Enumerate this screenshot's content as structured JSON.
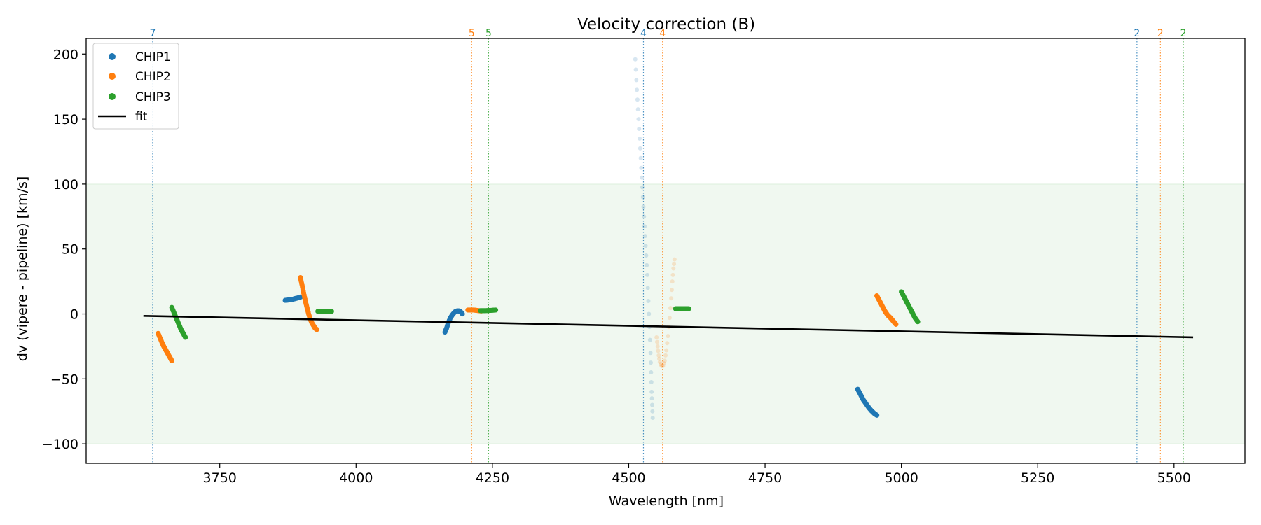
{
  "chart_data": {
    "type": "scatter",
    "title": "Velocity correction (B)",
    "xlabel": "Wavelength [nm]",
    "ylabel": "dv (vipere - pipeline) [km/s]",
    "xlim": [
      3505,
      5630
    ],
    "ylim": [
      -115,
      212
    ],
    "xticks": [
      3750,
      4000,
      4250,
      4500,
      4750,
      5000,
      5250,
      5500
    ],
    "yticks": [
      -100,
      -50,
      0,
      50,
      100,
      150,
      200
    ],
    "tick_labels_x": [
      "3750",
      "4000",
      "4250",
      "4500",
      "4750",
      "5000",
      "5250",
      "5500"
    ],
    "tick_labels_y": [
      "−100",
      "−50",
      "0",
      "50",
      "100",
      "150",
      "200"
    ],
    "band": {
      "ymin": -100,
      "ymax": 100,
      "color": "#2ca02c"
    },
    "zero_line": 0,
    "legend": {
      "placement": "top-left",
      "entries": [
        {
          "label": "CHIP1",
          "color": "#1f77b4",
          "kind": "marker"
        },
        {
          "label": "CHIP2",
          "color": "#ff7f0e",
          "kind": "marker"
        },
        {
          "label": "CHIP3",
          "color": "#2ca02c",
          "kind": "marker"
        },
        {
          "label": "fit",
          "color": "#000000",
          "kind": "line"
        }
      ]
    },
    "series": [
      {
        "name": "CHIP1",
        "color": "#1f77b4",
        "segments": [
          {
            "faded": false,
            "points": [
              [
                3870,
                10.5
              ],
              [
                3875,
                10.7
              ],
              [
                3880,
                11
              ],
              [
                3885,
                11.4
              ],
              [
                3890,
                12
              ],
              [
                3895,
                12.5
              ],
              [
                3898,
                13
              ]
            ]
          },
          {
            "faded": false,
            "points": [
              [
                4163,
                -14
              ],
              [
                4166,
                -11
              ],
              [
                4169,
                -7
              ],
              [
                4173,
                -3
              ],
              [
                4177,
                -0.5
              ],
              [
                4181,
                1.5
              ],
              [
                4185,
                2.3
              ],
              [
                4189,
                2.3
              ],
              [
                4192,
                1.5
              ],
              [
                4195,
                0
              ]
            ]
          },
          {
            "faded": true,
            "points": [
              [
                4512,
                196
              ],
              [
                4514,
                180
              ],
              [
                4516,
                165
              ],
              [
                4518,
                150
              ],
              [
                4520,
                135
              ],
              [
                4522,
                120
              ],
              [
                4524,
                105
              ],
              [
                4526,
                90
              ],
              [
                4528,
                75
              ],
              [
                4530,
                60
              ],
              [
                4532,
                45
              ],
              [
                4534,
                30
              ],
              [
                4536,
                10
              ],
              [
                4538,
                -10
              ],
              [
                4540,
                -30
              ],
              [
                4541,
                -45
              ],
              [
                4542,
                -60
              ],
              [
                4543,
                -70
              ],
              [
                4544,
                -80
              ]
            ]
          },
          {
            "faded": false,
            "points": [
              [
                4920,
                -58
              ],
              [
                4925,
                -62
              ],
              [
                4930,
                -66
              ],
              [
                4935,
                -69
              ],
              [
                4940,
                -72
              ],
              [
                4945,
                -74.5
              ],
              [
                4950,
                -76.5
              ],
              [
                4955,
                -78
              ]
            ]
          }
        ]
      },
      {
        "name": "CHIP2",
        "color": "#ff7f0e",
        "segments": [
          {
            "faded": false,
            "points": [
              [
                3637,
                -15
              ],
              [
                3642,
                -20
              ],
              [
                3646,
                -24
              ],
              [
                3650,
                -27
              ],
              [
                3654,
                -30
              ],
              [
                3658,
                -33
              ],
              [
                3662,
                -36
              ]
            ]
          },
          {
            "faded": false,
            "points": [
              [
                3898,
                28
              ],
              [
                3901,
                22
              ],
              [
                3904,
                16
              ],
              [
                3907,
                10
              ],
              [
                3910,
                5
              ],
              [
                3913,
                0
              ],
              [
                3916,
                -4
              ],
              [
                3919,
                -7
              ],
              [
                3922,
                -9
              ],
              [
                3925,
                -11
              ],
              [
                3928,
                -12
              ]
            ]
          },
          {
            "faded": false,
            "points": [
              [
                4205,
                3
              ],
              [
                4210,
                3
              ],
              [
                4215,
                3
              ],
              [
                4220,
                2.8
              ],
              [
                4225,
                2.5
              ],
              [
                4230,
                2.3
              ]
            ]
          },
          {
            "faded": true,
            "points": [
              [
                4551,
                -18
              ],
              [
                4553,
                -25
              ],
              [
                4555,
                -32
              ],
              [
                4557,
                -37
              ],
              [
                4560,
                -40
              ],
              [
                4563,
                -40
              ],
              [
                4566,
                -36
              ],
              [
                4569,
                -28
              ],
              [
                4572,
                -17
              ],
              [
                4575,
                -3
              ],
              [
                4578,
                12
              ],
              [
                4580,
                25
              ],
              [
                4582,
                35
              ],
              [
                4584,
                42
              ]
            ]
          },
          {
            "faded": false,
            "points": [
              [
                4955,
                14
              ],
              [
                4960,
                10
              ],
              [
                4965,
                6
              ],
              [
                4970,
                2
              ],
              [
                4975,
                -1
              ],
              [
                4980,
                -3
              ],
              [
                4985,
                -5.5
              ],
              [
                4990,
                -8
              ]
            ]
          }
        ]
      },
      {
        "name": "CHIP3",
        "color": "#2ca02c",
        "segments": [
          {
            "faded": false,
            "points": [
              [
                3662,
                5
              ],
              [
                3667,
                0
              ],
              [
                3671,
                -4
              ],
              [
                3675,
                -8
              ],
              [
                3679,
                -12
              ],
              [
                3683,
                -15
              ],
              [
                3687,
                -18
              ]
            ]
          },
          {
            "faded": false,
            "points": [
              [
                3930,
                2
              ],
              [
                3935,
                2
              ],
              [
                3940,
                2
              ],
              [
                3945,
                2
              ],
              [
                3950,
                2
              ],
              [
                3955,
                2
              ]
            ]
          },
          {
            "faded": false,
            "points": [
              [
                4228,
                2.5
              ],
              [
                4235,
                2.5
              ],
              [
                4242,
                2.6
              ],
              [
                4249,
                2.8
              ],
              [
                4256,
                3
              ]
            ]
          },
          {
            "faded": false,
            "points": [
              [
                4586,
                4
              ],
              [
                4592,
                4
              ],
              [
                4598,
                4
              ],
              [
                4604,
                4
              ],
              [
                4610,
                4
              ]
            ]
          },
          {
            "faded": false,
            "points": [
              [
                5000,
                17
              ],
              [
                5005,
                13
              ],
              [
                5010,
                9
              ],
              [
                5015,
                5
              ],
              [
                5020,
                1
              ],
              [
                5025,
                -3
              ],
              [
                5030,
                -6
              ]
            ]
          }
        ]
      }
    ],
    "fit": {
      "color": "#000000",
      "points": [
        [
          3610,
          -1.5
        ],
        [
          5535,
          -18
        ]
      ]
    },
    "order_lines": [
      {
        "x": 3627,
        "label": "7",
        "color": "#1f77b4"
      },
      {
        "x": 4212,
        "label": "5",
        "color": "#ff7f0e"
      },
      {
        "x": 4243,
        "label": "5",
        "color": "#2ca02c"
      },
      {
        "x": 4527,
        "label": "4",
        "color": "#1f77b4"
      },
      {
        "x": 4562,
        "label": "4",
        "color": "#ff7f0e"
      },
      {
        "x": 5432,
        "label": "2",
        "color": "#1f77b4"
      },
      {
        "x": 5475,
        "label": "2",
        "color": "#ff7f0e"
      },
      {
        "x": 5517,
        "label": "2",
        "color": "#2ca02c"
      }
    ]
  }
}
